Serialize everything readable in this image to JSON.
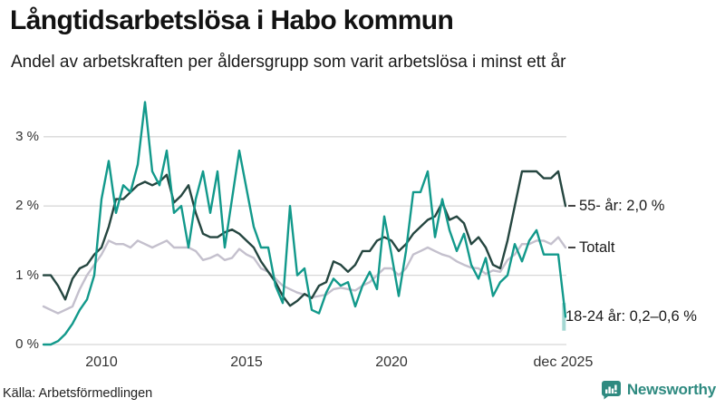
{
  "title": "Långtidsarbetslösa i Habo kommun",
  "subtitle": "Andel av arbetskraften per åldersgrupp som varit arbetslösa i minst ett år",
  "source": "Källa: Arbetsförmedlingen",
  "branding": {
    "logo_text": "Newsworthy",
    "logo_icon": "bar-chart-speech-bubble-icon",
    "color": "#2e8a80"
  },
  "colors": {
    "line_18_24": "#12998b",
    "line_55": "#254640",
    "line_totalt": "#c4c0cd",
    "grid": "#d8d8d8",
    "uncertainty_band": "#12998b",
    "text": "#1a1a1a"
  },
  "chart_data": {
    "type": "line",
    "title": "Långtidsarbetslösa i Habo kommun",
    "subtitle": "Andel av arbetskraften per åldersgrupp som varit arbetslösa i minst ett år",
    "unit": "% av arbetskraften",
    "x_start": 2008.0,
    "x_step": 0.25,
    "x_range_note": "monthly data from 2008 through dec 2025, transcribed quarterly",
    "grid": "horizontal",
    "legend_position": "right-edge-annotations",
    "y_axis": {
      "range": [
        0,
        3.5
      ],
      "ticks": [
        {
          "label": "0 %",
          "value": 0
        },
        {
          "label": "1 %",
          "value": 1
        },
        {
          "label": "2 %",
          "value": 2
        },
        {
          "label": "3 %",
          "value": 3
        }
      ]
    },
    "x_axis": {
      "ticks": [
        {
          "label": "2010",
          "year": 2010
        },
        {
          "label": "2015",
          "year": 2015
        },
        {
          "label": "2020",
          "year": 2020
        },
        {
          "label": "dec 2025",
          "year": 2025.92
        }
      ]
    },
    "series": [
      {
        "name": "18-24 år",
        "color": "#12998b",
        "end_label": "18-24 år: 0,2–0,6 %",
        "label_value": 0.4,
        "end_range": [
          0.2,
          0.6
        ],
        "values": [
          0.0,
          0.0,
          0.05,
          0.15,
          0.3,
          0.5,
          0.65,
          1.0,
          2.1,
          2.65,
          1.9,
          2.3,
          2.2,
          2.6,
          3.5,
          2.5,
          2.3,
          2.8,
          1.9,
          2.0,
          1.4,
          2.1,
          2.5,
          1.9,
          2.5,
          1.4,
          2.1,
          2.8,
          2.25,
          1.7,
          1.4,
          1.4,
          0.85,
          0.6,
          2.0,
          1.0,
          1.1,
          0.5,
          0.45,
          0.75,
          0.95,
          0.85,
          0.9,
          0.55,
          0.85,
          1.05,
          0.8,
          1.85,
          1.3,
          0.7,
          1.35,
          2.2,
          2.2,
          2.5,
          1.55,
          2.1,
          1.65,
          1.35,
          1.6,
          1.15,
          0.95,
          1.25,
          0.7,
          0.9,
          1.0,
          1.45,
          1.2,
          1.5,
          1.65,
          1.3,
          1.3,
          1.3,
          0.4
        ]
      },
      {
        "name": "55- år",
        "color": "#254640",
        "end_label": "55- år: 2,0 %",
        "label_value": 2.0,
        "values": [
          1.0,
          1.0,
          0.85,
          0.65,
          0.95,
          1.1,
          1.15,
          1.3,
          1.4,
          1.7,
          2.1,
          2.1,
          2.2,
          2.3,
          2.35,
          2.3,
          2.35,
          2.45,
          2.05,
          2.15,
          2.3,
          1.9,
          1.6,
          1.55,
          1.55,
          1.62,
          1.66,
          1.6,
          1.5,
          1.4,
          1.2,
          1.05,
          0.9,
          0.7,
          0.56,
          0.63,
          0.73,
          0.67,
          0.85,
          0.9,
          1.2,
          1.15,
          1.05,
          1.15,
          1.35,
          1.35,
          1.5,
          1.55,
          1.5,
          1.35,
          1.45,
          1.6,
          1.7,
          1.8,
          1.85,
          2.05,
          1.8,
          1.85,
          1.75,
          1.45,
          1.55,
          1.4,
          1.15,
          1.1,
          1.5,
          2.0,
          2.5,
          2.5,
          2.5,
          2.4,
          2.4,
          2.5,
          2.0
        ]
      },
      {
        "name": "Totalt",
        "color": "#c4c0cd",
        "end_label": "Totalt",
        "label_value": 1.4,
        "values": [
          0.55,
          0.5,
          0.45,
          0.5,
          0.55,
          0.8,
          1.0,
          1.15,
          1.3,
          1.5,
          1.45,
          1.45,
          1.4,
          1.5,
          1.45,
          1.4,
          1.45,
          1.5,
          1.4,
          1.4,
          1.4,
          1.35,
          1.22,
          1.25,
          1.3,
          1.22,
          1.25,
          1.38,
          1.3,
          1.25,
          1.1,
          1.05,
          0.95,
          0.85,
          0.8,
          0.75,
          0.72,
          0.68,
          0.7,
          0.72,
          0.8,
          0.82,
          0.8,
          0.78,
          0.85,
          0.9,
          1.0,
          1.1,
          1.1,
          1.0,
          1.1,
          1.3,
          1.35,
          1.4,
          1.35,
          1.3,
          1.27,
          1.2,
          1.15,
          1.11,
          1.1,
          1.02,
          1.07,
          1.05,
          1.22,
          1.3,
          1.45,
          1.45,
          1.5,
          1.5,
          1.45,
          1.55,
          1.4
        ]
      }
    ]
  }
}
